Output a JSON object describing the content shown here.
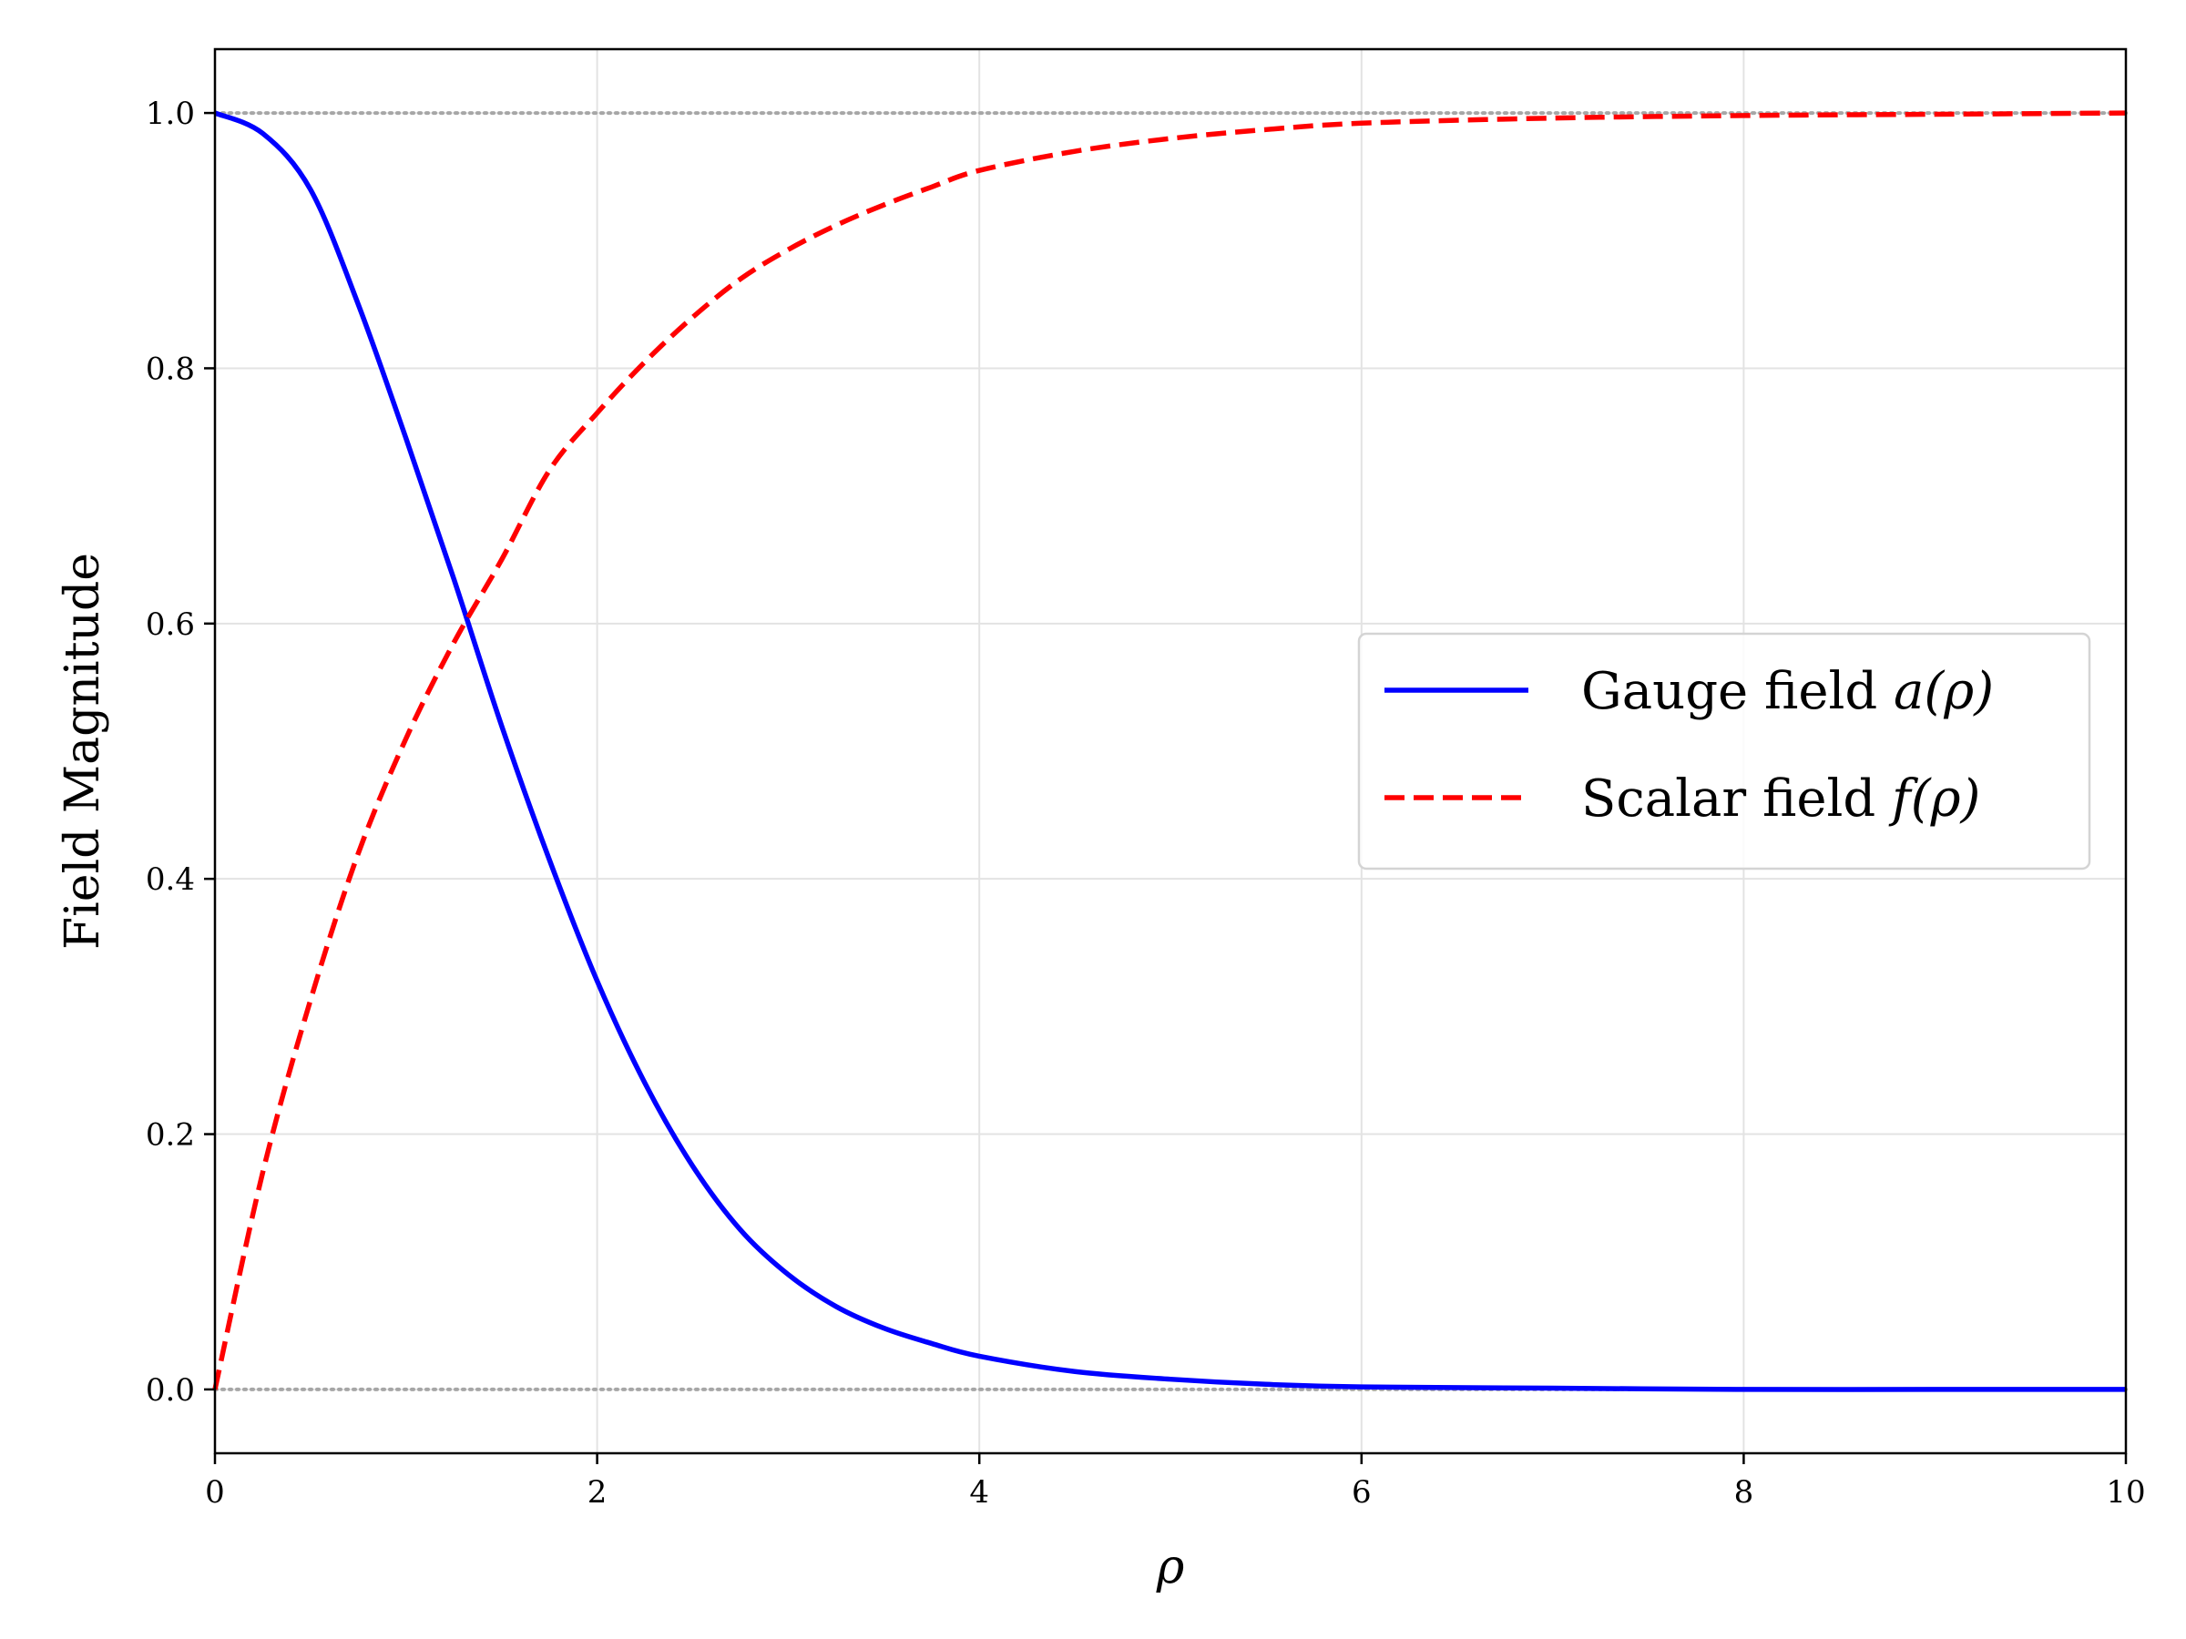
{
  "chart_data": {
    "type": "line",
    "xlabel": "ρ",
    "ylabel": "Field Magnitude",
    "xlim": [
      0,
      10
    ],
    "ylim": [
      -0.05,
      1.05
    ],
    "xticks": [
      0,
      2,
      4,
      6,
      8,
      10
    ],
    "xtick_labels": [
      "0",
      "2",
      "4",
      "6",
      "8",
      "10"
    ],
    "yticks": [
      0.0,
      0.2,
      0.4,
      0.6,
      0.8,
      1.0
    ],
    "ytick_labels": [
      "0.0",
      "0.2",
      "0.4",
      "0.6",
      "0.8",
      "1.0"
    ],
    "grid": true,
    "reference_lines": [
      0.0,
      1.0
    ],
    "legend_position": "center-right",
    "series": [
      {
        "name": "Gauge field a(ρ)",
        "label_prefix": "Gauge field ",
        "label_math": "a(ρ)",
        "color": "#0000ff",
        "style": "solid",
        "x": [
          0,
          0.25,
          0.5,
          0.75,
          1.0,
          1.25,
          1.5,
          1.75,
          2.0,
          2.25,
          2.5,
          2.75,
          3.0,
          3.25,
          3.5,
          3.75,
          4.0,
          4.5,
          5.0,
          5.5,
          6.0,
          7.0,
          8.0,
          9.0,
          10.0
        ],
        "y": [
          1.0,
          0.984,
          0.94,
          0.85,
          0.745,
          0.635,
          0.52,
          0.415,
          0.32,
          0.24,
          0.175,
          0.125,
          0.09,
          0.065,
          0.048,
          0.036,
          0.026,
          0.014,
          0.008,
          0.004,
          0.002,
          0.001,
          0.0,
          0.0,
          0.0
        ]
      },
      {
        "name": "Scalar field f(ρ)",
        "label_prefix": "Scalar field ",
        "label_math": "f(ρ)",
        "color": "#ff0000",
        "style": "dashed",
        "x": [
          0,
          0.25,
          0.5,
          0.75,
          1.0,
          1.25,
          1.5,
          1.75,
          2.0,
          2.25,
          2.5,
          2.75,
          3.0,
          3.25,
          3.5,
          3.75,
          4.0,
          4.5,
          5.0,
          5.5,
          6.0,
          7.0,
          8.0,
          9.0,
          10.0
        ],
        "y": [
          0.0,
          0.17,
          0.305,
          0.42,
          0.51,
          0.585,
          0.65,
          0.72,
          0.765,
          0.805,
          0.84,
          0.87,
          0.893,
          0.912,
          0.928,
          0.942,
          0.955,
          0.97,
          0.98,
          0.987,
          0.992,
          0.996,
          0.998,
          0.999,
          1.0
        ]
      }
    ]
  }
}
